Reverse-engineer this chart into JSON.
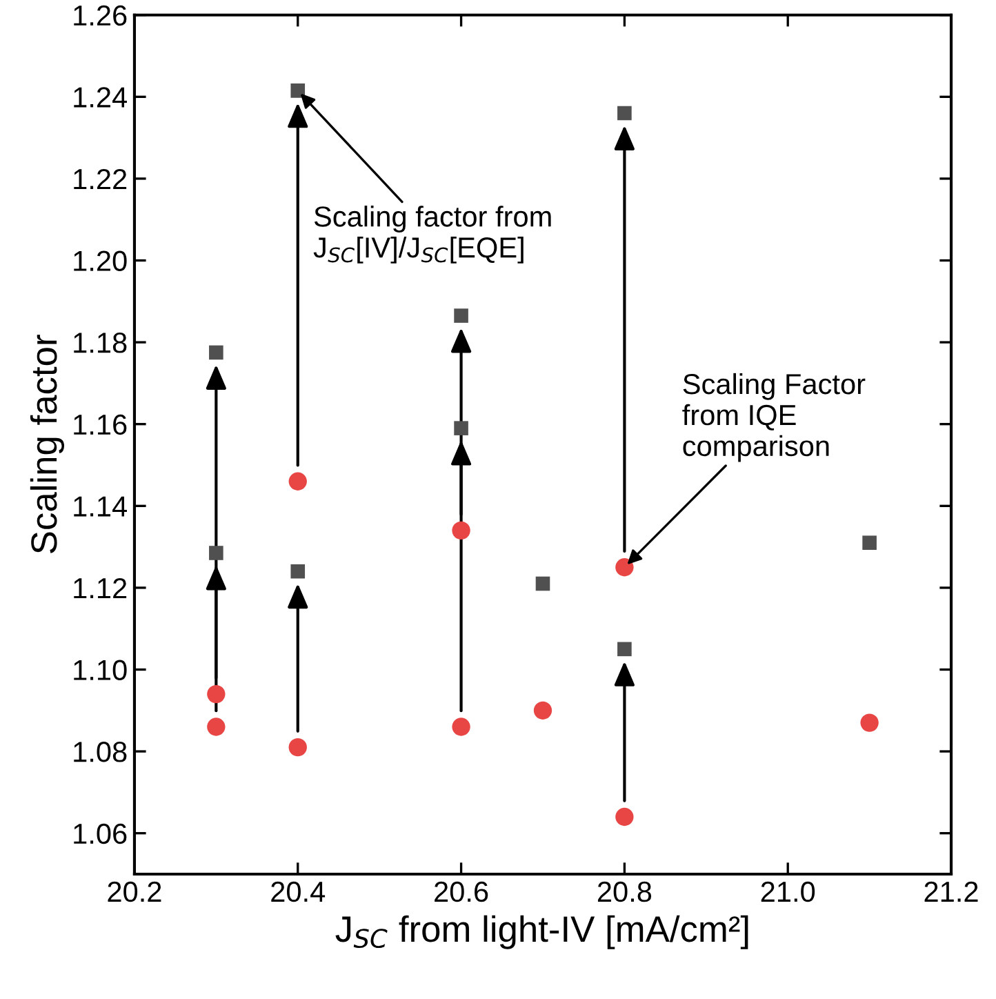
{
  "chart_data": {
    "type": "scatter",
    "xlabel": "J$_{SC}$ from light-IV [mA/cm²]",
    "ylabel": "Scaling factor",
    "series": [
      {
        "marker": "square",
        "color": "#505050",
        "x": [
          20.3,
          20.3,
          20.4,
          20.4,
          20.6,
          20.6,
          20.7,
          20.8,
          20.8,
          21.1
        ],
        "values": [
          1.1775,
          1.1285,
          1.2415,
          1.124,
          1.159,
          1.1865,
          1.121,
          1.236,
          1.105,
          1.131
        ]
      },
      {
        "marker": "circle",
        "color": "#e84545",
        "x": [
          20.3,
          20.3,
          20.4,
          20.4,
          20.6,
          20.6,
          20.7,
          20.8,
          20.8,
          21.1
        ],
        "values": [
          1.094,
          1.086,
          1.146,
          1.081,
          1.086,
          1.134,
          1.09,
          1.125,
          1.064,
          1.087
        ]
      }
    ],
    "annotations": [
      {
        "text": "Scaling factor from\nJ$_{SC}$[IV]/J$_{SC}$[EQE]",
        "x": 20.4,
        "y": 1.2415
      },
      {
        "text": "Scaling Factor\nfrom IQE\ncomparison",
        "x": 20.8,
        "y": 1.125
      }
    ],
    "xlim": [
      20.2,
      21.2
    ],
    "xticks": [
      20.2,
      20.4,
      20.6,
      20.8,
      {
        "value": 21.0,
        "label": "21.0"
      },
      21.2
    ],
    "ylim": [
      1.05,
      1.26
    ],
    "yticks": [
      {
        "value": 1.06,
        "label": "1.06"
      },
      {
        "value": 1.08,
        "label": "1.08"
      },
      {
        "value": 1.1,
        "label": "1.10"
      },
      {
        "value": 1.12,
        "label": "1.12"
      },
      {
        "value": 1.14,
        "label": "1.14"
      },
      {
        "value": 1.16,
        "label": "1.16"
      },
      {
        "value": 1.18,
        "label": "1.18"
      },
      {
        "value": 1.2,
        "label": "1.20"
      },
      {
        "value": 1.22,
        "label": "1.22"
      },
      {
        "value": 1.24,
        "label": "1.24"
      },
      {
        "value": 1.26,
        "label": "1.26"
      }
    ],
    "grid": false,
    "legend": false
  }
}
